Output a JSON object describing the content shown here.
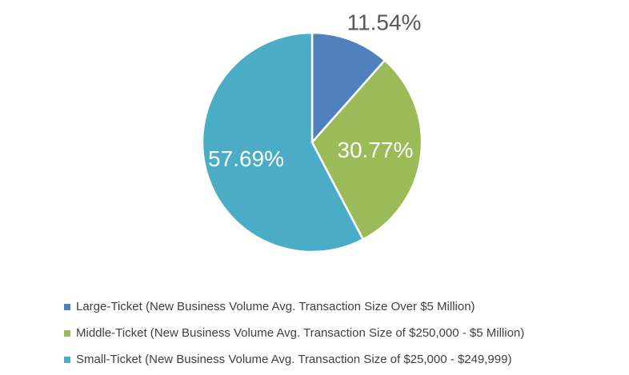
{
  "chart_data": {
    "type": "pie",
    "title": "",
    "slices": [
      {
        "name": "Large-Ticket (New Business Volume Avg. Transaction Size Over $5 Million)",
        "value": 11.54,
        "label": "11.54%",
        "color": "#4f81bd",
        "label_color": "#595959"
      },
      {
        "name": "Middle-Ticket (New Business Volume Avg. Transaction Size of $250,000 - $5 Million)",
        "value": 30.77,
        "label": "30.77%",
        "color": "#9bbb59",
        "label_color": "#ffffff"
      },
      {
        "name": "Small-Ticket (New Business Volume Avg. Transaction Size of $25,000 - $249,999)",
        "value": 57.69,
        "label": "57.69%",
        "color": "#4bacc6",
        "label_color": "#ffffff"
      }
    ],
    "legend_position": "bottom"
  }
}
